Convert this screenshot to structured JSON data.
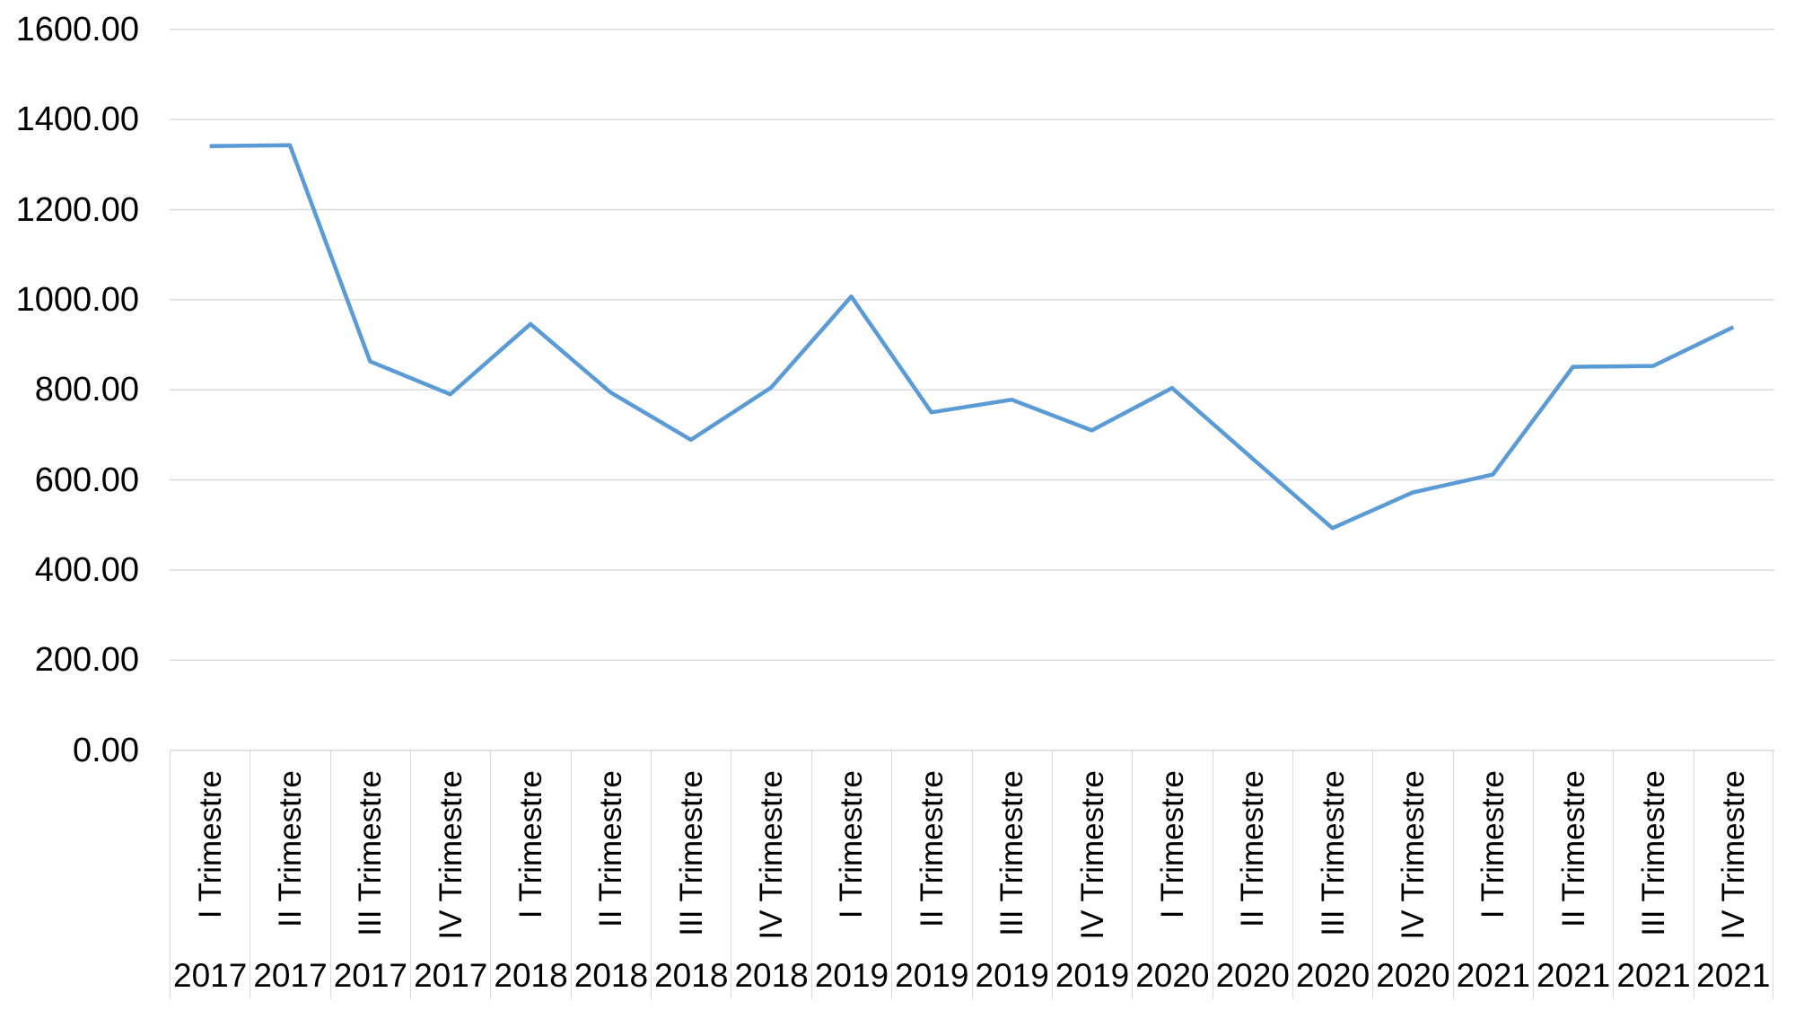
{
  "chart_data": {
    "type": "line",
    "title": "",
    "legend": "none",
    "grid": "horizontal",
    "ylim": [
      0,
      1600
    ],
    "y_tick_step": 200,
    "y_ticks": [
      {
        "label": "1600.00",
        "value": 1600
      },
      {
        "label": "1400.00",
        "value": 1400
      },
      {
        "label": "1200.00",
        "value": 1200
      },
      {
        "label": "1000.00",
        "value": 1000
      },
      {
        "label": "800.00",
        "value": 800
      },
      {
        "label": "600.00",
        "value": 600
      },
      {
        "label": "400.00",
        "value": 400
      },
      {
        "label": "200.00",
        "value": 200
      },
      {
        "label": "0.00",
        "value": 0
      }
    ],
    "categories": [
      {
        "quarter": "I Trimestre",
        "year": "2017"
      },
      {
        "quarter": "II Trimestre",
        "year": "2017"
      },
      {
        "quarter": "III Trimestre",
        "year": "2017"
      },
      {
        "quarter": "IV Trimestre",
        "year": "2017"
      },
      {
        "quarter": "I Trimestre",
        "year": "2018"
      },
      {
        "quarter": "II Trimestre",
        "year": "2018"
      },
      {
        "quarter": "III Trimestre",
        "year": "2018"
      },
      {
        "quarter": "IV Trimestre",
        "year": "2018"
      },
      {
        "quarter": "I Trimestre",
        "year": "2019"
      },
      {
        "quarter": "II Trimestre",
        "year": "2019"
      },
      {
        "quarter": "III Trimestre",
        "year": "2019"
      },
      {
        "quarter": "IV Trimestre",
        "year": "2019"
      },
      {
        "quarter": "I Trimestre",
        "year": "2020"
      },
      {
        "quarter": "II Trimestre",
        "year": "2020"
      },
      {
        "quarter": "III Trimestre",
        "year": "2020"
      },
      {
        "quarter": "IV Trimestre",
        "year": "2020"
      },
      {
        "quarter": "I Trimestre",
        "year": "2021"
      },
      {
        "quarter": "II Trimestre",
        "year": "2021"
      },
      {
        "quarter": "III Trimestre",
        "year": "2021"
      },
      {
        "quarter": "IV Trimestre",
        "year": "2021"
      }
    ],
    "values": [
      1341,
      1343,
      863,
      790,
      946,
      794,
      689,
      805,
      1007,
      750,
      778,
      710,
      804,
      648,
      493,
      572,
      612,
      851,
      853,
      939
    ],
    "line_color": "#5B9BD5",
    "gridline_color": "#D9D9D9",
    "cell_border_color": "#D9D9D9",
    "text_color": "#000000"
  }
}
